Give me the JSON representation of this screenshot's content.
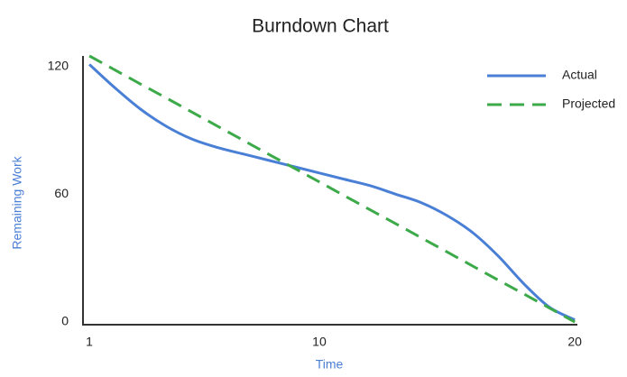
{
  "chart_data": {
    "type": "line",
    "title": "Burndown Chart",
    "x_label": "Time",
    "y_label": "Remaining Work",
    "x": [
      1,
      2,
      3,
      4,
      5,
      6,
      7,
      8,
      9,
      10,
      11,
      12,
      13,
      14,
      15,
      16,
      17,
      18,
      19,
      20
    ],
    "series": [
      {
        "name": "Actual",
        "color": "#4a7fd6",
        "dash": false,
        "values": [
          121,
          110,
          100,
          92,
          86,
          82,
          79,
          76,
          73,
          70,
          67,
          64,
          60,
          56,
          50,
          42,
          31,
          18,
          7,
          1
        ]
      },
      {
        "name": "Projected",
        "color": "#3daa4a",
        "dash": true,
        "values": [
          125,
          118.4,
          111.8,
          105.3,
          98.7,
          92.1,
          85.5,
          78.9,
          72.4,
          65.8,
          59.2,
          52.6,
          46.1,
          39.5,
          32.9,
          26.3,
          19.7,
          13.2,
          6.6,
          0
        ]
      }
    ],
    "xlim": [
      0.75,
      20.1
    ],
    "xticks": [
      1,
      10,
      20
    ],
    "ylim": [
      0,
      125
    ],
    "yticks": [
      0,
      60,
      120
    ],
    "legend": "top-right"
  }
}
